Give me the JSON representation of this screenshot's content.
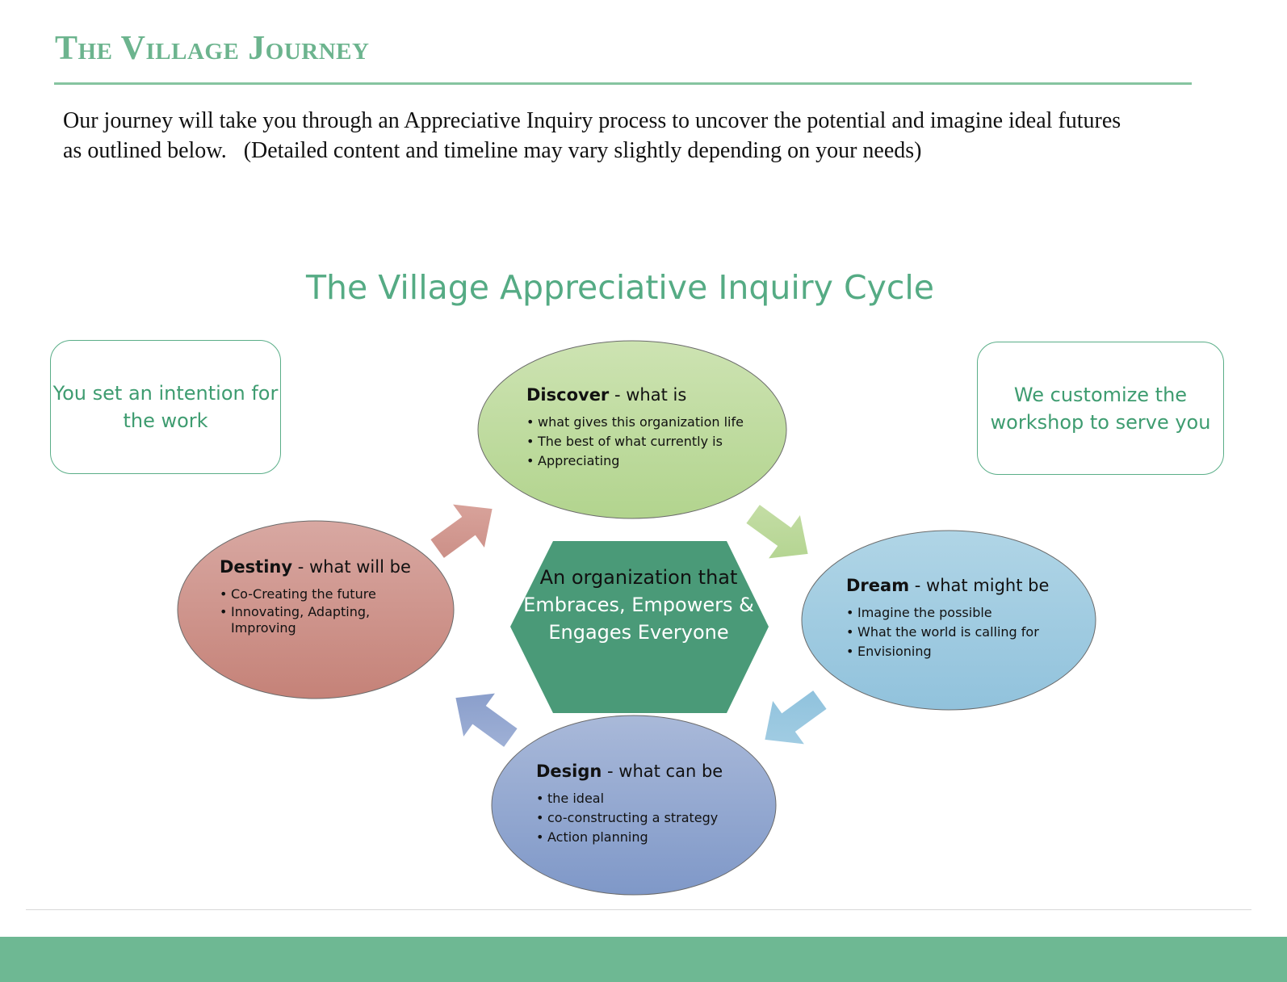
{
  "header": {
    "title": "The Village Journey"
  },
  "intro": {
    "line1": "Our journey will take you through an Appreciative Inquiry process to uncover the potential and imagine ideal futures",
    "line2": "as outlined below.   (Detailed content and timeline may vary slightly depending on your needs)"
  },
  "diagram": {
    "title": "The Village Appreciative Inquiry Cycle",
    "notes": {
      "left": "You set an intention for the work",
      "right": "We customize the workshop to serve you"
    },
    "center": {
      "part1": "An organization that",
      "part2": "Embraces, Empowers & Engages Everyone"
    },
    "stages": {
      "discover": {
        "name": "Discover",
        "tagline": " - what is",
        "bullets": [
          "what gives this organization life",
          "The best of what currently is",
          "Appreciating"
        ],
        "color": "#bcd89a"
      },
      "dream": {
        "name": "Dream",
        "tagline": " - what might be",
        "bullets": [
          "Imagine the possible",
          "What the world is calling for",
          "Envisioning"
        ],
        "color": "#9fcbe0"
      },
      "design": {
        "name": "Design",
        "tagline": " - what can be",
        "bullets": [
          "the ideal",
          "co-constructing a strategy",
          "Action planning"
        ],
        "color": "#93a7cf"
      },
      "destiny": {
        "name": "Destiny",
        "tagline": " -  what will be",
        "bullets": [
          "Co-Creating the future",
          "Innovating, Adapting, Improving"
        ],
        "color": "#cf9088"
      }
    },
    "colors": {
      "hexagon": "#4a9a78",
      "accent_green": "#6cb48e"
    }
  }
}
